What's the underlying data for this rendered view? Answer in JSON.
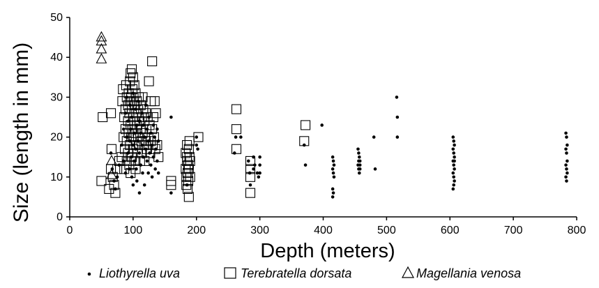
{
  "chart_data": {
    "type": "scatter",
    "title": "",
    "xlabel": "Depth (meters)",
    "ylabel": "Size (length in mm)",
    "xlim": [
      0,
      800
    ],
    "ylim": [
      0,
      50
    ],
    "xticks": [
      "0",
      "100",
      "200",
      "300",
      "400",
      "500",
      "600",
      "700",
      "800"
    ],
    "yticks": [
      "0",
      "10",
      "20",
      "30",
      "40",
      "50"
    ],
    "grid": false,
    "legend": "bottom",
    "series": [
      {
        "name": "Liothyrella uva",
        "marker": "dot",
        "color": "#000000",
        "points": [
          [
            65,
            16
          ],
          [
            67,
            12
          ],
          [
            70,
            9
          ],
          [
            72,
            7
          ],
          [
            75,
            10
          ],
          [
            78,
            13
          ],
          [
            82,
            18
          ],
          [
            85,
            22
          ],
          [
            85,
            14
          ],
          [
            88,
            26
          ],
          [
            88,
            11
          ],
          [
            90,
            30
          ],
          [
            90,
            20
          ],
          [
            92,
            16
          ],
          [
            92,
            24
          ],
          [
            94,
            12
          ],
          [
            95,
            28
          ],
          [
            95,
            19
          ],
          [
            96,
            22
          ],
          [
            97,
            15
          ],
          [
            98,
            25
          ],
          [
            98,
            10
          ],
          [
            100,
            18
          ],
          [
            100,
            31
          ],
          [
            100,
            8
          ],
          [
            102,
            21
          ],
          [
            102,
            14
          ],
          [
            104,
            27
          ],
          [
            104,
            17
          ],
          [
            105,
            12
          ],
          [
            106,
            23
          ],
          [
            106,
            9
          ],
          [
            108,
            19
          ],
          [
            108,
            29
          ],
          [
            110,
            16
          ],
          [
            110,
            6
          ],
          [
            110,
            24
          ],
          [
            112,
            13
          ],
          [
            112,
            21
          ],
          [
            114,
            18
          ],
          [
            114,
            26
          ],
          [
            115,
            11
          ],
          [
            116,
            15
          ],
          [
            116,
            23
          ],
          [
            118,
            20
          ],
          [
            118,
            8
          ],
          [
            120,
            17
          ],
          [
            120,
            28
          ],
          [
            122,
            14
          ],
          [
            122,
            22
          ],
          [
            124,
            19
          ],
          [
            124,
            11
          ],
          [
            125,
            25
          ],
          [
            126,
            16
          ],
          [
            128,
            21
          ],
          [
            128,
            13
          ],
          [
            130,
            18
          ],
          [
            130,
            10
          ],
          [
            132,
            23
          ],
          [
            132,
            15
          ],
          [
            134,
            20
          ],
          [
            135,
            12
          ],
          [
            136,
            17
          ],
          [
            138,
            22
          ],
          [
            138,
            14
          ],
          [
            140,
            19
          ],
          [
            140,
            11
          ],
          [
            160,
            25
          ],
          [
            160,
            6
          ],
          [
            185,
            8
          ],
          [
            200,
            20
          ],
          [
            200,
            18
          ],
          [
            202,
            17
          ],
          [
            260,
            16
          ],
          [
            262,
            20
          ],
          [
            270,
            20
          ],
          [
            282,
            14
          ],
          [
            284,
            11
          ],
          [
            285,
            8
          ],
          [
            290,
            12
          ],
          [
            290,
            15
          ],
          [
            292,
            13
          ],
          [
            296,
            11
          ],
          [
            298,
            10
          ],
          [
            300,
            15
          ],
          [
            300,
            13
          ],
          [
            300,
            11
          ],
          [
            370,
            18
          ],
          [
            372,
            13
          ],
          [
            398,
            23
          ],
          [
            415,
            15
          ],
          [
            416,
            14
          ],
          [
            417,
            13
          ],
          [
            415,
            12
          ],
          [
            416,
            11
          ],
          [
            417,
            10
          ],
          [
            415,
            7
          ],
          [
            416,
            6
          ],
          [
            415,
            5
          ],
          [
            455,
            17
          ],
          [
            456,
            16
          ],
          [
            457,
            15
          ],
          [
            458,
            14
          ],
          [
            455,
            13
          ],
          [
            456,
            12
          ],
          [
            457,
            11
          ],
          [
            458,
            13
          ],
          [
            458,
            12
          ],
          [
            456,
            14
          ],
          [
            480,
            20
          ],
          [
            482,
            12
          ],
          [
            516,
            30
          ],
          [
            517,
            25
          ],
          [
            517,
            20
          ],
          [
            605,
            20
          ],
          [
            606,
            19
          ],
          [
            607,
            18
          ],
          [
            605,
            17
          ],
          [
            606,
            16
          ],
          [
            607,
            15
          ],
          [
            605,
            14
          ],
          [
            606,
            13
          ],
          [
            607,
            12
          ],
          [
            605,
            11
          ],
          [
            606,
            10
          ],
          [
            607,
            9
          ],
          [
            606,
            8
          ],
          [
            605,
            7
          ],
          [
            607,
            14
          ],
          [
            783,
            21
          ],
          [
            784,
            20
          ],
          [
            785,
            18
          ],
          [
            783,
            17
          ],
          [
            784,
            16
          ],
          [
            785,
            14
          ],
          [
            783,
            13
          ],
          [
            784,
            12
          ],
          [
            785,
            11
          ],
          [
            783,
            10
          ],
          [
            784,
            9
          ]
        ]
      },
      {
        "name": "Terebratella dorsata",
        "marker": "square",
        "color": "#000000",
        "points": [
          [
            50,
            9
          ],
          [
            52,
            25
          ],
          [
            62,
            7
          ],
          [
            65,
            26
          ],
          [
            65,
            12
          ],
          [
            66,
            17
          ],
          [
            68,
            10
          ],
          [
            70,
            8
          ],
          [
            72,
            6
          ],
          [
            75,
            12
          ],
          [
            78,
            14
          ],
          [
            82,
            15
          ],
          [
            83,
            29
          ],
          [
            84,
            32
          ],
          [
            85,
            20
          ],
          [
            86,
            12
          ],
          [
            86,
            25
          ],
          [
            87,
            17
          ],
          [
            88,
            27
          ],
          [
            88,
            22
          ],
          [
            89,
            33
          ],
          [
            90,
            30
          ],
          [
            90,
            19
          ],
          [
            90,
            14
          ],
          [
            92,
            28
          ],
          [
            92,
            24
          ],
          [
            92,
            16
          ],
          [
            93,
            31
          ],
          [
            93,
            21
          ],
          [
            94,
            26
          ],
          [
            94,
            13
          ],
          [
            95,
            34
          ],
          [
            95,
            29
          ],
          [
            95,
            18
          ],
          [
            96,
            36
          ],
          [
            96,
            23
          ],
          [
            96,
            11
          ],
          [
            97,
            30
          ],
          [
            97,
            20
          ],
          [
            98,
            37
          ],
          [
            98,
            27
          ],
          [
            98,
            15
          ],
          [
            99,
            32
          ],
          [
            99,
            22
          ],
          [
            100,
            35
          ],
          [
            100,
            25
          ],
          [
            100,
            17
          ],
          [
            101,
            29
          ],
          [
            101,
            20
          ],
          [
            102,
            33
          ],
          [
            102,
            24
          ],
          [
            102,
            14
          ],
          [
            103,
            28
          ],
          [
            104,
            31
          ],
          [
            104,
            21
          ],
          [
            104,
            12
          ],
          [
            105,
            26
          ],
          [
            105,
            18
          ],
          [
            106,
            29
          ],
          [
            106,
            23
          ],
          [
            107,
            16
          ],
          [
            108,
            27
          ],
          [
            108,
            20
          ],
          [
            109,
            30
          ],
          [
            110,
            24
          ],
          [
            110,
            18
          ],
          [
            111,
            14
          ],
          [
            112,
            28
          ],
          [
            112,
            22
          ],
          [
            113,
            19
          ],
          [
            114,
            25
          ],
          [
            114,
            16
          ],
          [
            115,
            30
          ],
          [
            115,
            21
          ],
          [
            116,
            27
          ],
          [
            117,
            18
          ],
          [
            118,
            24
          ],
          [
            118,
            14
          ],
          [
            120,
            26
          ],
          [
            120,
            19
          ],
          [
            121,
            22
          ],
          [
            122,
            17
          ],
          [
            123,
            25
          ],
          [
            124,
            20
          ],
          [
            125,
            34
          ],
          [
            126,
            23
          ],
          [
            127,
            16
          ],
          [
            128,
            29
          ],
          [
            128,
            19
          ],
          [
            130,
            39
          ],
          [
            130,
            22
          ],
          [
            131,
            18
          ],
          [
            132,
            25
          ],
          [
            133,
            20
          ],
          [
            134,
            29
          ],
          [
            135,
            17
          ],
          [
            136,
            26
          ],
          [
            138,
            18
          ],
          [
            140,
            15
          ],
          [
            160,
            8
          ],
          [
            160,
            9
          ],
          [
            183,
            16
          ],
          [
            183,
            12
          ],
          [
            184,
            10
          ],
          [
            184,
            8
          ],
          [
            185,
            14
          ],
          [
            185,
            18
          ],
          [
            185,
            15
          ],
          [
            186,
            11
          ],
          [
            186,
            7
          ],
          [
            187,
            13
          ],
          [
            187,
            9
          ],
          [
            188,
            17
          ],
          [
            188,
            12
          ],
          [
            188,
            5
          ],
          [
            189,
            19
          ],
          [
            189,
            15
          ],
          [
            190,
            10
          ],
          [
            190,
            14
          ],
          [
            203,
            20
          ],
          [
            263,
            27
          ],
          [
            263,
            22
          ],
          [
            263,
            17
          ],
          [
            285,
            14
          ],
          [
            285,
            12
          ],
          [
            285,
            10
          ],
          [
            285,
            6
          ],
          [
            372,
            23
          ],
          [
            370,
            19
          ]
        ]
      },
      {
        "name": "Magellania venosa",
        "marker": "triangle",
        "color": "#000000",
        "points": [
          [
            50,
            45
          ],
          [
            50,
            44
          ],
          [
            50,
            42
          ],
          [
            50,
            39.5
          ],
          [
            66,
            14
          ],
          [
            66,
            10.5
          ]
        ]
      }
    ]
  }
}
